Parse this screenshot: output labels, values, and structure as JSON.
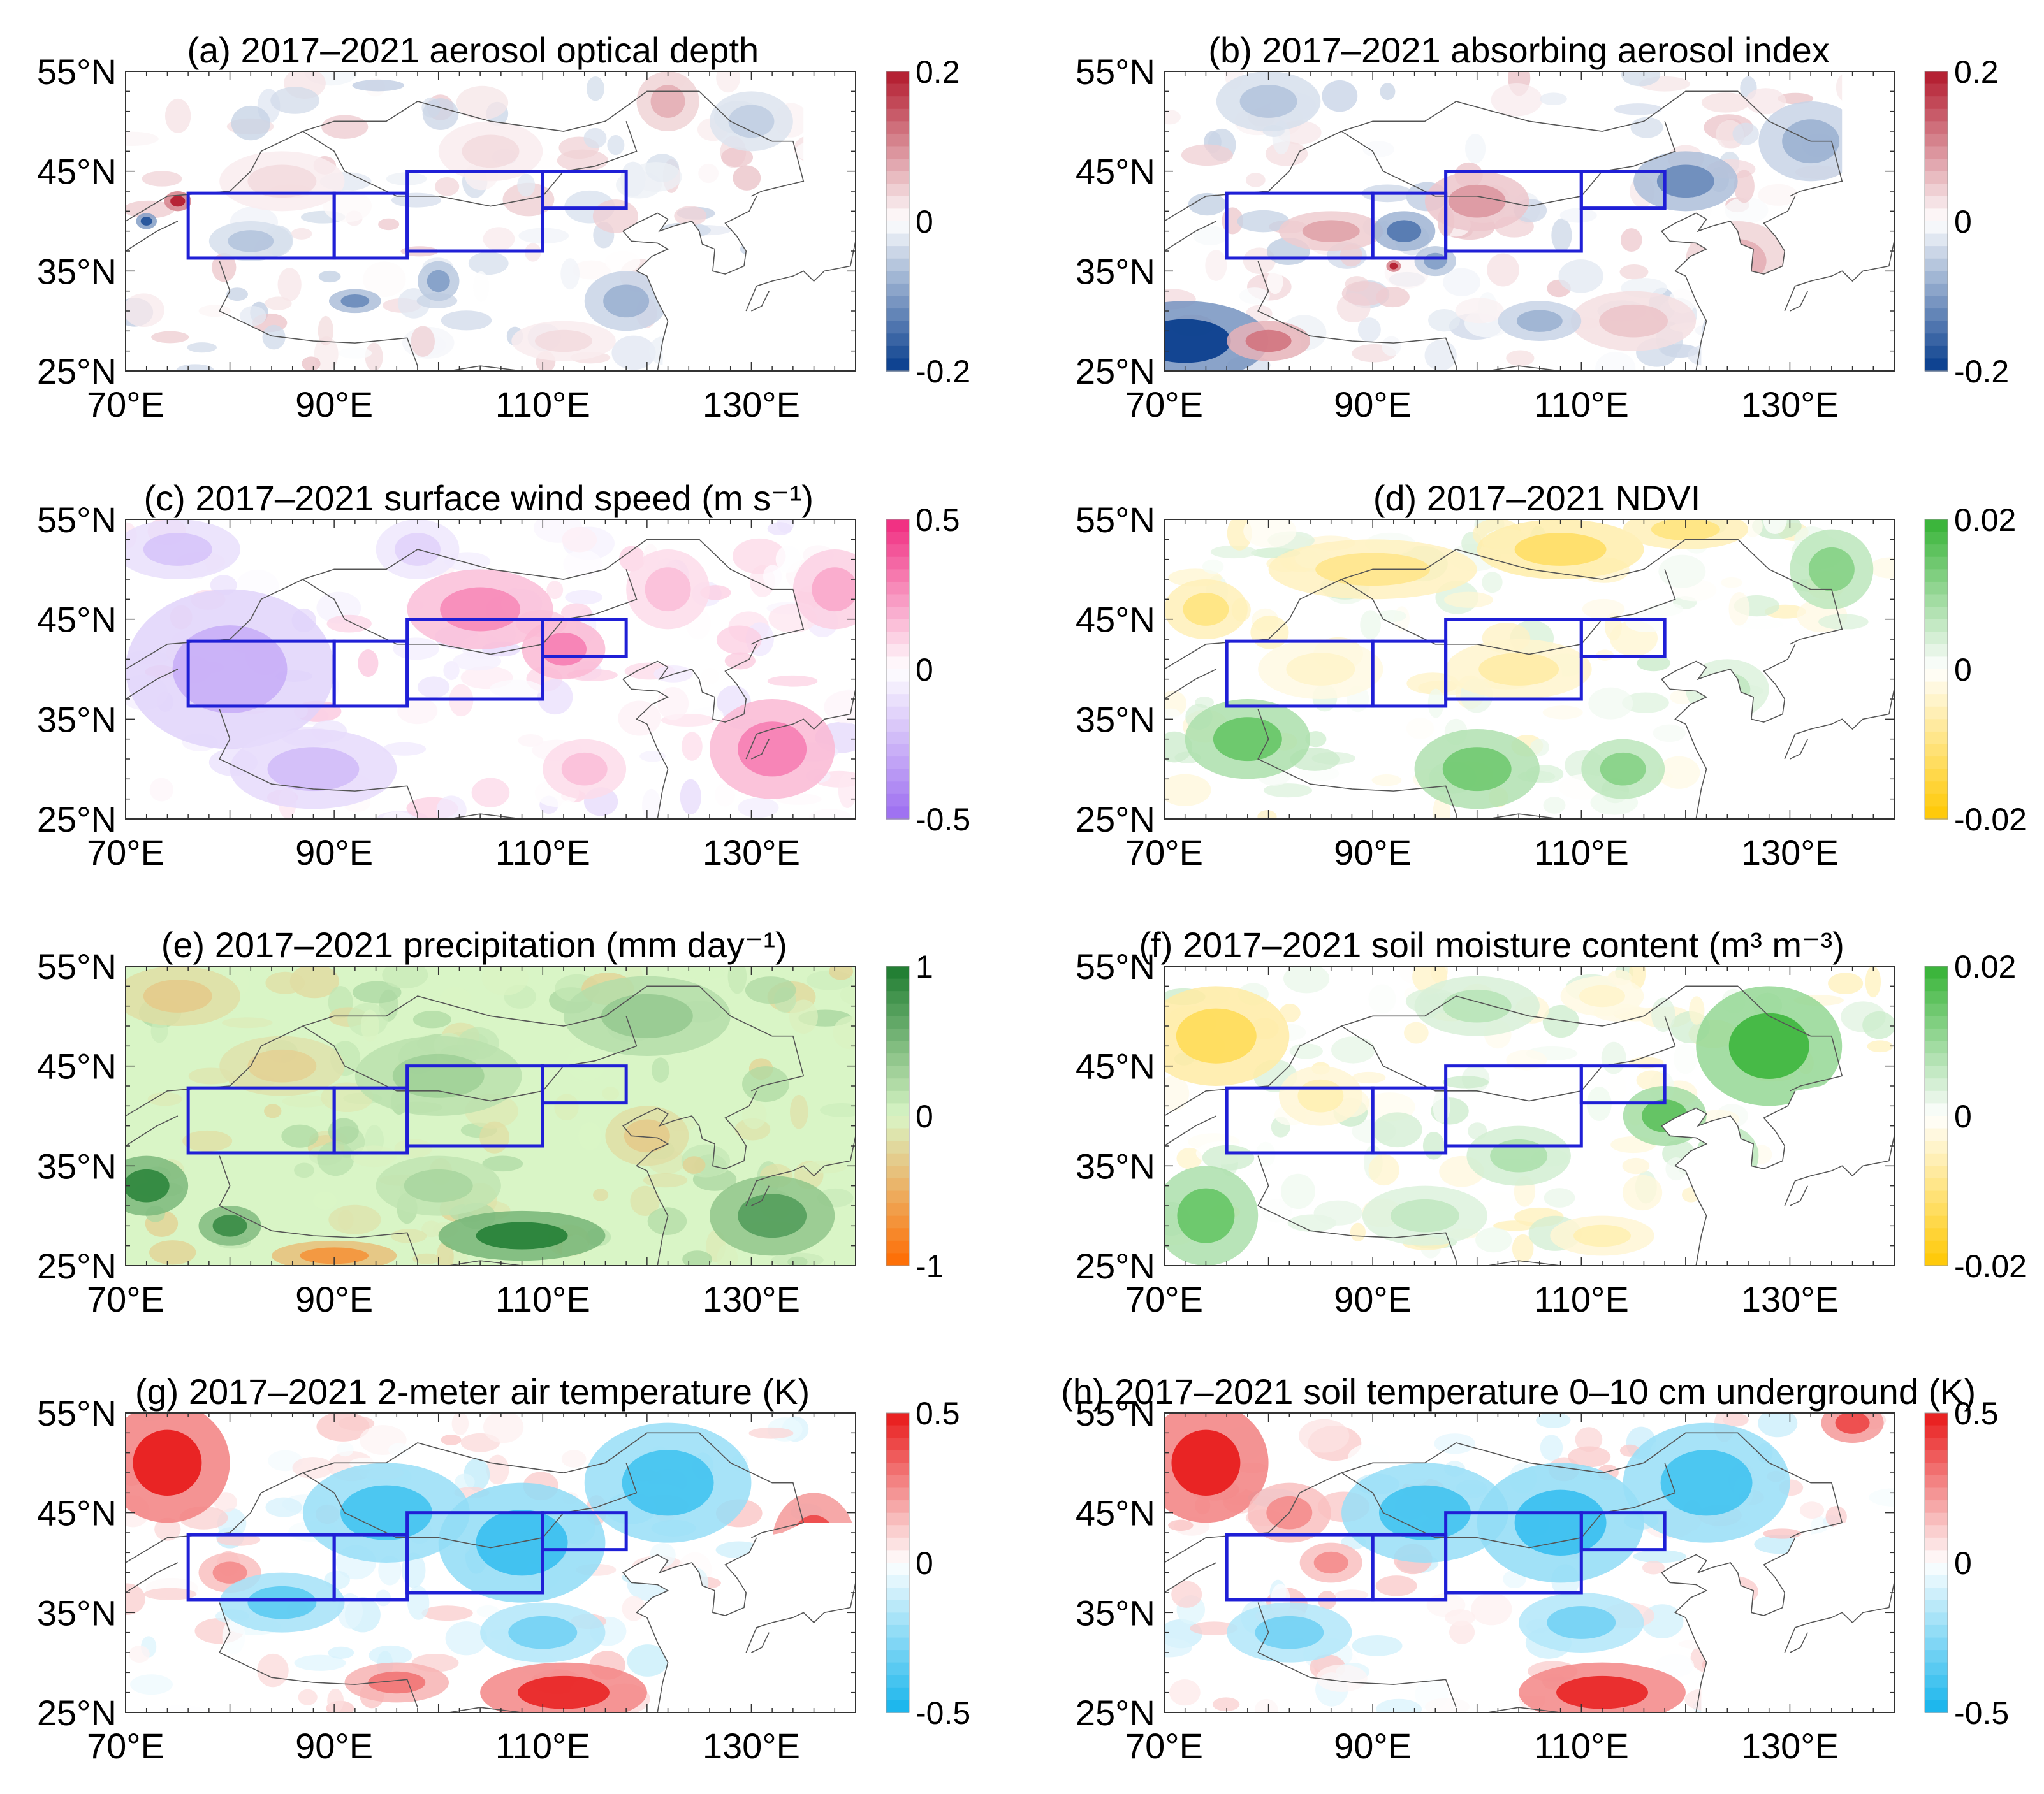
{
  "figure": {
    "lat_labels": [
      "55°N",
      "45°N",
      "35°N",
      "25°N"
    ],
    "lon_labels": [
      "70°E",
      "90°E",
      "110°E",
      "130°E"
    ],
    "lat_range": [
      25,
      55
    ],
    "lon_range": [
      70,
      140
    ],
    "lat_ticks": [
      55,
      45,
      35,
      25
    ],
    "lon_ticks": [
      70,
      90,
      110,
      130
    ],
    "highlight_color": "#1f1fd6",
    "regions": [
      {
        "lon": [
          76,
          90
        ],
        "lat": [
          36.3,
          42.8
        ]
      },
      {
        "lon": [
          90,
          97
        ],
        "lat": [
          36.3,
          42.8
        ]
      },
      {
        "lon": [
          97,
          110
        ],
        "lat": [
          37,
          45
        ]
      },
      {
        "lon": [
          110,
          118
        ],
        "lat": [
          41.3,
          45
        ]
      }
    ],
    "panels": [
      {
        "id": "a",
        "title": "(a) 2017–2021 aerosol optical depth",
        "scale": [
          "0.2",
          "0",
          "-0.2"
        ],
        "palette": "blue-red"
      },
      {
        "id": "b",
        "title": "(b) 2017–2021 absorbing aerosol index",
        "scale": [
          "0.2",
          "0",
          "-0.2"
        ],
        "palette": "blue-red"
      },
      {
        "id": "c",
        "title": "(c) 2017–2021 surface wind speed (m s⁻¹)",
        "scale": [
          "0.5",
          "0",
          "-0.5"
        ],
        "palette": "purple-pink"
      },
      {
        "id": "d",
        "title": "(d) 2017–2021 NDVI",
        "scale": [
          "0.02",
          "0",
          "-0.02"
        ],
        "palette": "yellow-green"
      },
      {
        "id": "e",
        "title": "(e) 2017–2021 precipitation (mm day⁻¹)",
        "scale": [
          "1",
          "0",
          "-1"
        ],
        "palette": "orange-green"
      },
      {
        "id": "f",
        "title": "(f)  2017–2021 soil moisture content (m³ m⁻³)",
        "scale": [
          "0.02",
          "0",
          "-0.02"
        ],
        "palette": "yellow-green"
      },
      {
        "id": "g",
        "title": "(g) 2017–2021 2-meter air temperature (K)",
        "scale": [
          "0.5",
          "0",
          "-0.5"
        ],
        "palette": "cyan-red"
      },
      {
        "id": "h",
        "title": "(h) 2017–2021 soil temperature 0–10 cm underground (K)",
        "scale": [
          "0.5",
          "0",
          "-0.5"
        ],
        "palette": "cyan-red"
      }
    ]
  }
}
